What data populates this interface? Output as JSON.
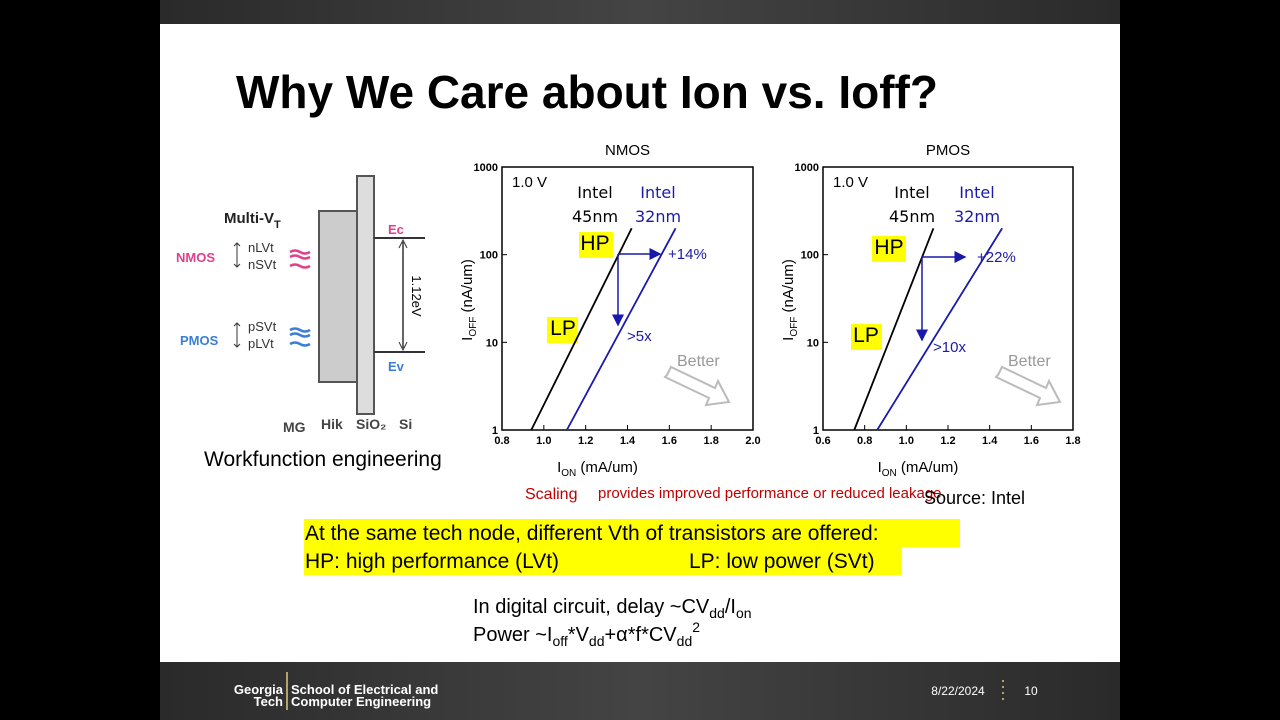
{
  "title": "Why We Care about Ion vs. Ioff?",
  "diagram": {
    "heading": [
      "Multi-V",
      "T"
    ],
    "nmos": "NMOS",
    "pmos": "PMOS",
    "nlvt": "nLVt",
    "nsvt": "nSVt",
    "psvt": "pSVt",
    "plvt": "pLVt",
    "ec": "Ec",
    "ev": "Ev",
    "gap": "1.12eV",
    "layers": [
      "MG",
      "Hik",
      "SiO₂",
      "Si"
    ],
    "caption": "Workfunction engineering"
  },
  "chart_data": [
    {
      "type": "line",
      "title": "NMOS",
      "xlabel": [
        "I",
        "ON",
        " (mA/um)"
      ],
      "ylabel": [
        "I",
        "OFF",
        " (nA/um)"
      ],
      "log_y": true,
      "xlim": [
        0.8,
        2.0
      ],
      "ylim": [
        1,
        1000
      ],
      "xticks": [
        0.8,
        {
          "value": 1,
          "label": "1.0"
        },
        1.2,
        1.4,
        1.6,
        1.8,
        {
          "value": 2,
          "label": "2.0"
        }
      ],
      "yticks": [
        1,
        10,
        100,
        1000
      ],
      "series": [
        {
          "name": "Intel 45nm",
          "color": "#000000",
          "x": [
            0.94,
            1.42
          ],
          "values": [
            1,
            200
          ]
        },
        {
          "name": "Intel 32nm",
          "color": "#1a1aaa",
          "x": [
            1.11,
            1.63
          ],
          "values": [
            1,
            200
          ]
        }
      ],
      "annotations": [
        "1.0 V",
        "HP",
        "LP",
        "+14%",
        ">5x",
        "Better"
      ]
    },
    {
      "type": "line",
      "title": "PMOS",
      "xlabel": [
        "I",
        "ON",
        " (mA/um)"
      ],
      "ylabel": [
        "I",
        "OFF",
        " (nA/um)"
      ],
      "log_y": true,
      "xlim": [
        0.6,
        1.8
      ],
      "ylim": [
        1,
        1000
      ],
      "xticks": [
        0.6,
        0.8,
        {
          "value": 1,
          "label": "1.0"
        },
        1.2,
        1.4,
        1.6,
        1.8
      ],
      "yticks": [
        1,
        10,
        100,
        1000
      ],
      "series": [
        {
          "name": "Intel 45nm",
          "color": "#000000",
          "x": [
            0.75,
            1.13
          ],
          "values": [
            1,
            200
          ]
        },
        {
          "name": "Intel 32nm",
          "color": "#1a1aaa",
          "x": [
            0.86,
            1.46
          ],
          "values": [
            1,
            200
          ]
        }
      ],
      "annotations": [
        "1.0 V",
        "HP",
        "LP",
        "+22%",
        ">10x",
        "Better"
      ]
    }
  ],
  "scaling": [
    "Scaling",
    "provides improved performance or reduced leakage"
  ],
  "source": "Source: Intel",
  "highlight": [
    "At the same tech node, different Vth of transistors are offered:",
    "HP: high performance (LVt)",
    "LP: low power (SVt)"
  ],
  "delay": [
    "In digital circuit, delay ~CV",
    "dd",
    "/I",
    "on"
  ],
  "power": [
    "Power ~I",
    "off",
    "*V",
    "dd",
    "+α*f*CV",
    "dd",
    "2"
  ],
  "footer": {
    "logo": [
      "Georgia",
      "Tech"
    ],
    "school": [
      "School of Electrical and",
      "Computer Engineering"
    ],
    "date": "8/22/2024",
    "page": 10
  }
}
